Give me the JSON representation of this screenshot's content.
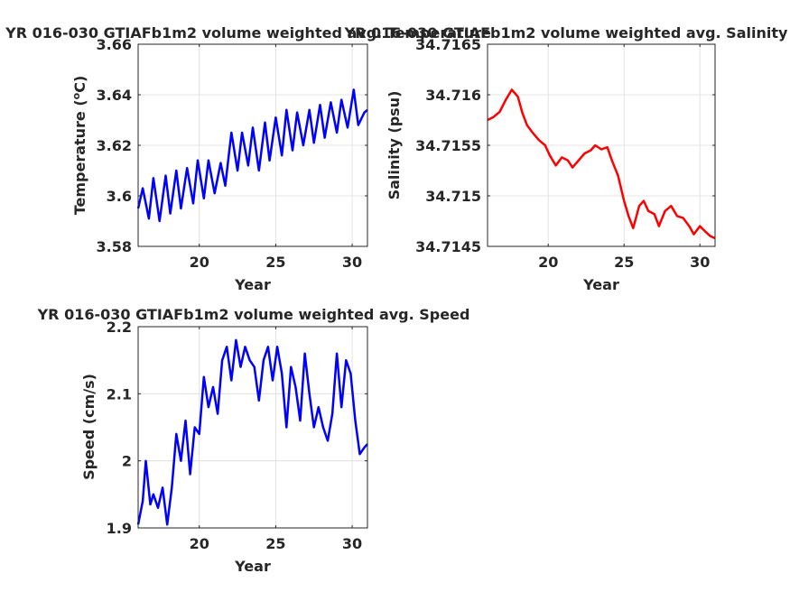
{
  "chart_data": [
    {
      "type": "line",
      "title": "YR 016-030 GTIAFb1m2 volume weighted avg. Temperature",
      "xlabel": "Year",
      "ylabel": "Temperature (°C)",
      "ylabel_main": "Temperature (",
      "ylabel_unit_sup": "o",
      "ylabel_unit_rest": "C)",
      "xlim": [
        16,
        31
      ],
      "ylim": [
        3.58,
        3.66
      ],
      "xticks": [
        20,
        25,
        30
      ],
      "xtick_labels": [
        "20",
        "25",
        "30"
      ],
      "yticks": [
        3.58,
        3.6,
        3.62,
        3.64,
        3.66
      ],
      "ytick_labels": [
        "3.58",
        "3.6",
        "3.62",
        "3.64",
        "3.66"
      ],
      "grid": true,
      "color": "#0000ff",
      "series": [
        {
          "x": [
            16.0,
            16.3,
            16.7,
            17.0,
            17.4,
            17.8,
            18.1,
            18.5,
            18.8,
            19.2,
            19.6,
            19.9,
            20.3,
            20.6,
            21.0,
            21.4,
            21.7,
            22.1,
            22.5,
            22.8,
            23.2,
            23.5,
            23.9,
            24.3,
            24.6,
            25.0,
            25.4,
            25.7,
            26.1,
            26.4,
            26.8,
            27.2,
            27.5,
            27.9,
            28.2,
            28.6,
            29.0,
            29.3,
            29.7,
            30.1,
            30.4,
            30.8,
            31.0
          ],
          "y": [
            3.595,
            3.603,
            3.591,
            3.607,
            3.59,
            3.608,
            3.593,
            3.61,
            3.595,
            3.611,
            3.597,
            3.614,
            3.599,
            3.614,
            3.601,
            3.613,
            3.604,
            3.625,
            3.61,
            3.625,
            3.612,
            3.627,
            3.61,
            3.629,
            3.614,
            3.631,
            3.616,
            3.634,
            3.618,
            3.633,
            3.62,
            3.634,
            3.621,
            3.636,
            3.623,
            3.637,
            3.625,
            3.638,
            3.627,
            3.642,
            3.628,
            3.633,
            3.634
          ]
        }
      ]
    },
    {
      "type": "line",
      "title": "YR 016-030 GTIAFb1m2 volume weighted avg. Salinity",
      "xlabel": "Year",
      "ylabel": "Salinity (psu)",
      "xlim": [
        16,
        31
      ],
      "ylim": [
        34.7145,
        34.7165
      ],
      "xticks": [
        20,
        25,
        30
      ],
      "xtick_labels": [
        "20",
        "25",
        "30"
      ],
      "yticks": [
        34.7145,
        34.715,
        34.7155,
        34.716,
        34.7165
      ],
      "ytick_labels": [
        "34.7145",
        "34.715",
        "34.7155",
        "34.716",
        "34.7165"
      ],
      "grid": true,
      "color": "#ff0000",
      "series": [
        {
          "x": [
            16.0,
            16.4,
            16.8,
            17.2,
            17.6,
            18.0,
            18.3,
            18.6,
            19.0,
            19.4,
            19.8,
            20.1,
            20.5,
            20.9,
            21.3,
            21.6,
            22.0,
            22.4,
            22.8,
            23.1,
            23.5,
            23.9,
            24.2,
            24.6,
            25.0,
            25.3,
            25.6,
            26.0,
            26.3,
            26.6,
            27.0,
            27.3,
            27.7,
            28.1,
            28.5,
            28.9,
            29.3,
            29.6,
            30.0,
            30.4,
            30.7,
            31.0
          ],
          "y": [
            34.71575,
            34.71578,
            34.71583,
            34.71595,
            34.71605,
            34.71598,
            34.71582,
            34.7157,
            34.71562,
            34.71555,
            34.7155,
            34.7154,
            34.7153,
            34.71538,
            34.71535,
            34.71528,
            34.71535,
            34.71542,
            34.71545,
            34.7155,
            34.71546,
            34.71548,
            34.71535,
            34.7152,
            34.71495,
            34.7148,
            34.71468,
            34.7149,
            34.71495,
            34.71485,
            34.71482,
            34.7147,
            34.71485,
            34.7149,
            34.7148,
            34.71478,
            34.7147,
            34.71462,
            34.7147,
            34.71464,
            34.7146,
            34.71458
          ]
        }
      ]
    },
    {
      "type": "line",
      "title": "YR 016-030 GTIAFb1m2 volume weighted avg. Speed",
      "xlabel": "Year",
      "ylabel": "Speed (cm/s)",
      "xlim": [
        16,
        31
      ],
      "ylim": [
        1.9,
        2.2
      ],
      "xticks": [
        20,
        25,
        30
      ],
      "xtick_labels": [
        "20",
        "25",
        "30"
      ],
      "yticks": [
        1.9,
        2.0,
        2.1,
        2.2
      ],
      "ytick_labels": [
        "1.9",
        "2",
        "2.1",
        "2.2"
      ],
      "grid": true,
      "color": "#0000ff",
      "series": [
        {
          "x": [
            16.0,
            16.3,
            16.5,
            16.8,
            17.0,
            17.3,
            17.6,
            17.9,
            18.2,
            18.5,
            18.8,
            19.1,
            19.4,
            19.7,
            20.0,
            20.3,
            20.6,
            20.9,
            21.2,
            21.5,
            21.8,
            22.1,
            22.4,
            22.7,
            23.0,
            23.3,
            23.6,
            23.9,
            24.2,
            24.5,
            24.8,
            25.1,
            25.4,
            25.7,
            26.0,
            26.3,
            26.6,
            26.9,
            27.2,
            27.5,
            27.8,
            28.1,
            28.4,
            28.7,
            29.0,
            29.3,
            29.6,
            29.9,
            30.2,
            30.5,
            30.8,
            31.0
          ],
          "y": [
            1.905,
            1.94,
            2.0,
            1.935,
            1.95,
            1.93,
            1.96,
            1.905,
            1.96,
            2.04,
            2.0,
            2.06,
            1.98,
            2.05,
            2.04,
            2.125,
            2.08,
            2.11,
            2.07,
            2.15,
            2.17,
            2.12,
            2.18,
            2.14,
            2.17,
            2.15,
            2.14,
            2.09,
            2.15,
            2.17,
            2.12,
            2.17,
            2.13,
            2.05,
            2.14,
            2.11,
            2.06,
            2.16,
            2.1,
            2.05,
            2.08,
            2.05,
            2.03,
            2.07,
            2.16,
            2.08,
            2.15,
            2.13,
            2.06,
            2.01,
            2.02,
            2.025
          ]
        }
      ]
    }
  ]
}
